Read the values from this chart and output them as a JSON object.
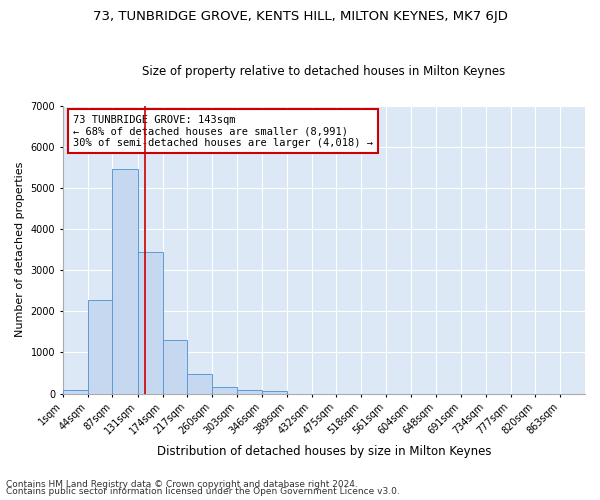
{
  "title1": "73, TUNBRIDGE GROVE, KENTS HILL, MILTON KEYNES, MK7 6JD",
  "title2": "Size of property relative to detached houses in Milton Keynes",
  "xlabel": "Distribution of detached houses by size in Milton Keynes",
  "ylabel": "Number of detached properties",
  "footnote1": "Contains HM Land Registry data © Crown copyright and database right 2024.",
  "footnote2": "Contains public sector information licensed under the Open Government Licence v3.0.",
  "annotation_line1": "73 TUNBRIDGE GROVE: 143sqm",
  "annotation_line2": "← 68% of detached houses are smaller (8,991)",
  "annotation_line3": "30% of semi-detached houses are larger (4,018) →",
  "bar_color": "#c5d8f0",
  "bar_edge_color": "#5b9bd5",
  "ref_line_color": "#cc0000",
  "ref_line_x": 143,
  "categories": [
    "1sqm",
    "44sqm",
    "87sqm",
    "131sqm",
    "174sqm",
    "217sqm",
    "260sqm",
    "303sqm",
    "346sqm",
    "389sqm",
    "432sqm",
    "475sqm",
    "518sqm",
    "561sqm",
    "604sqm",
    "648sqm",
    "691sqm",
    "734sqm",
    "777sqm",
    "820sqm",
    "863sqm"
  ],
  "bin_edges": [
    1,
    44,
    87,
    131,
    174,
    217,
    260,
    303,
    346,
    389,
    432,
    475,
    518,
    561,
    604,
    648,
    691,
    734,
    777,
    820,
    863,
    906
  ],
  "values": [
    75,
    2280,
    5470,
    3440,
    1310,
    470,
    155,
    80,
    55,
    0,
    0,
    0,
    0,
    0,
    0,
    0,
    0,
    0,
    0,
    0,
    0
  ],
  "ylim": [
    0,
    7000
  ],
  "yticks": [
    0,
    1000,
    2000,
    3000,
    4000,
    5000,
    6000,
    7000
  ],
  "xlim_min": 1,
  "xlim_max": 906,
  "background_color": "#dce8f5",
  "grid_color": "#ffffff",
  "fig_background": "#ffffff",
  "title1_fontsize": 9.5,
  "title2_fontsize": 8.5,
  "xlabel_fontsize": 8.5,
  "ylabel_fontsize": 8,
  "tick_fontsize": 7,
  "annotation_fontsize": 7.5,
  "footnote_fontsize": 6.5
}
